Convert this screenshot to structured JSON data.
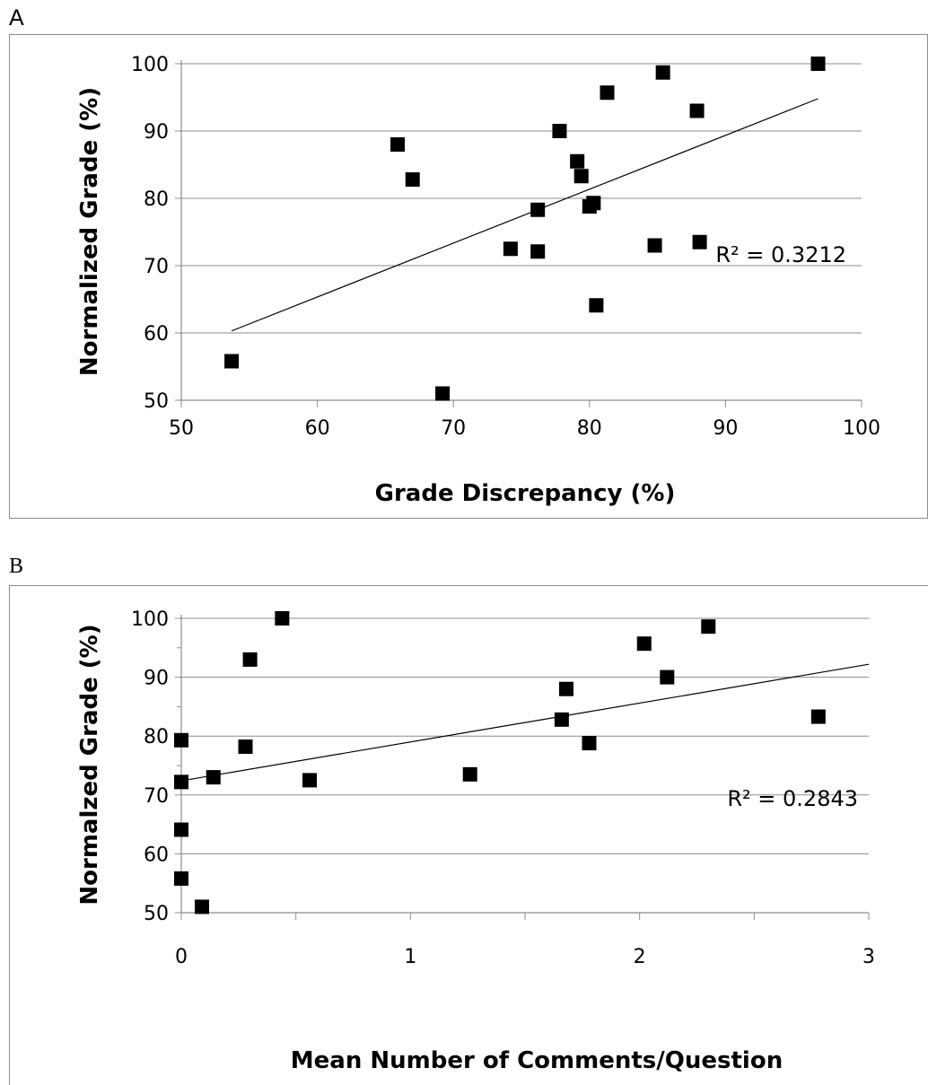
{
  "chart_data": [
    {
      "type": "scatter",
      "panel": "A",
      "xlabel": "Grade Discrepancy (%)",
      "ylabel": "Normalized Grade (%)",
      "xlim": [
        50,
        100
      ],
      "ylim": [
        50,
        100
      ],
      "xticks": [
        50,
        60,
        70,
        80,
        90,
        100
      ],
      "yticks": [
        50,
        60,
        70,
        80,
        90,
        100
      ],
      "grid": "horizontal",
      "marker": "square",
      "points": [
        {
          "x": 53.7,
          "y": 55.8
        },
        {
          "x": 65.9,
          "y": 88.0
        },
        {
          "x": 67.0,
          "y": 82.8
        },
        {
          "x": 69.2,
          "y": 51.0
        },
        {
          "x": 74.2,
          "y": 72.5
        },
        {
          "x": 76.2,
          "y": 72.1
        },
        {
          "x": 76.2,
          "y": 78.3
        },
        {
          "x": 77.8,
          "y": 90.0
        },
        {
          "x": 79.1,
          "y": 85.5
        },
        {
          "x": 79.4,
          "y": 83.3
        },
        {
          "x": 80.0,
          "y": 78.8
        },
        {
          "x": 80.3,
          "y": 79.3
        },
        {
          "x": 80.5,
          "y": 64.1
        },
        {
          "x": 81.3,
          "y": 95.7
        },
        {
          "x": 84.8,
          "y": 73.0
        },
        {
          "x": 85.4,
          "y": 98.7
        },
        {
          "x": 87.9,
          "y": 93.0
        },
        {
          "x": 88.1,
          "y": 73.5
        },
        {
          "x": 96.8,
          "y": 100.0
        }
      ],
      "trendline": {
        "x": [
          53.7,
          96.8
        ],
        "y": [
          60.3,
          94.8
        ]
      },
      "annotation": "R² = 0.3212"
    },
    {
      "type": "scatter",
      "panel": "B",
      "xlabel": "Mean Number of Comments/Question",
      "ylabel": "Normalzed Grade (%)",
      "xlim": [
        0,
        3
      ],
      "ylim": [
        50,
        100
      ],
      "xticks": [
        0,
        1,
        2,
        3
      ],
      "yticks": [
        50,
        60,
        70,
        80,
        90,
        100
      ],
      "grid": "horizontal",
      "marker": "square",
      "points": [
        {
          "x": 0.0,
          "y": 79.3
        },
        {
          "x": 0.0,
          "y": 72.2
        },
        {
          "x": 0.0,
          "y": 64.1
        },
        {
          "x": 0.0,
          "y": 55.8
        },
        {
          "x": 0.09,
          "y": 51.0
        },
        {
          "x": 0.14,
          "y": 73.0
        },
        {
          "x": 0.28,
          "y": 78.2
        },
        {
          "x": 0.3,
          "y": 93.0
        },
        {
          "x": 0.44,
          "y": 100.0
        },
        {
          "x": 0.56,
          "y": 72.5
        },
        {
          "x": 1.26,
          "y": 73.5
        },
        {
          "x": 1.66,
          "y": 82.8
        },
        {
          "x": 1.68,
          "y": 88.0
        },
        {
          "x": 1.78,
          "y": 78.8
        },
        {
          "x": 2.02,
          "y": 95.7
        },
        {
          "x": 2.12,
          "y": 90.0
        },
        {
          "x": 2.3,
          "y": 98.6
        },
        {
          "x": 2.78,
          "y": 83.3
        }
      ],
      "trendline": {
        "x": [
          0.0,
          3.0
        ],
        "y": [
          72.4,
          92.2
        ]
      },
      "annotation": "R² = 0.2843"
    }
  ],
  "panels": {
    "a_label": "A",
    "b_label": "B"
  }
}
